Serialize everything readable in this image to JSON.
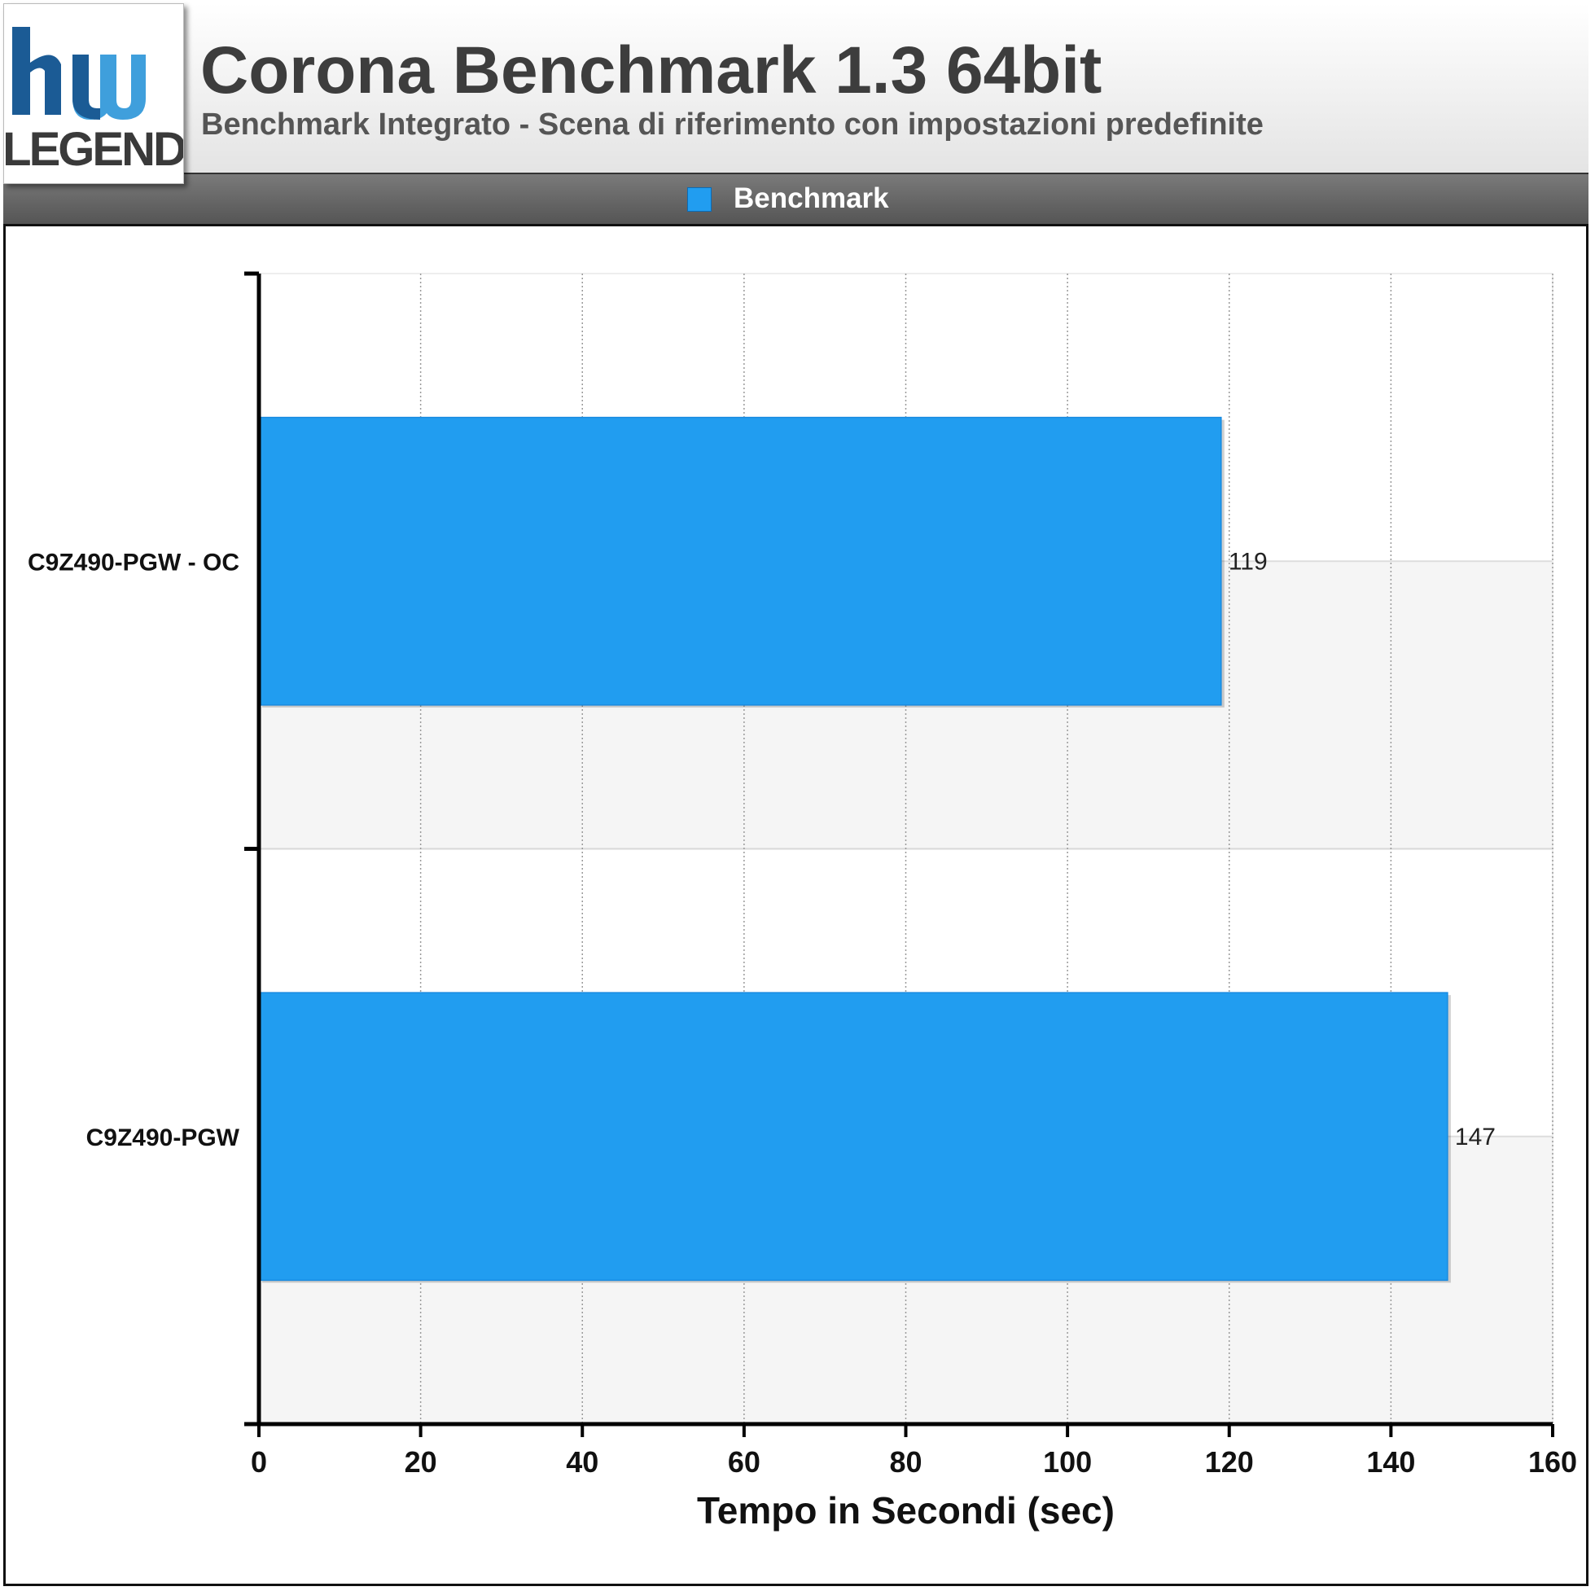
{
  "header": {
    "title": "Corona Benchmark 1.3 64bit",
    "subtitle": "Benchmark Integrato - Scena di riferimento con impostazioni predefinite",
    "logo_text": "hw LEGEND",
    "logo_colors": {
      "primary": "#1b5b95",
      "light": "#4aa6e0",
      "text": "#3a3a3a"
    }
  },
  "legend": {
    "label": "Benchmark",
    "color": "#219df0"
  },
  "chart_data": {
    "type": "bar",
    "orientation": "horizontal",
    "title": "Corona Benchmark 1.3 64bit",
    "subtitle": "Benchmark Integrato - Scena di riferimento con impostazioni predefinite",
    "categories": [
      "C9Z490-PGW - OC",
      "C9Z490-PGW"
    ],
    "series": [
      {
        "name": "Benchmark",
        "values": [
          119,
          147
        ],
        "color": "#219df0"
      }
    ],
    "data_labels": [
      "119",
      "147"
    ],
    "xlabel": "Tempo in Secondi (sec)",
    "xlim": [
      0,
      160
    ],
    "xticks": [
      0,
      20,
      40,
      60,
      80,
      100,
      120,
      140,
      160
    ],
    "grid": "vertical dotted",
    "legend_position": "top"
  }
}
